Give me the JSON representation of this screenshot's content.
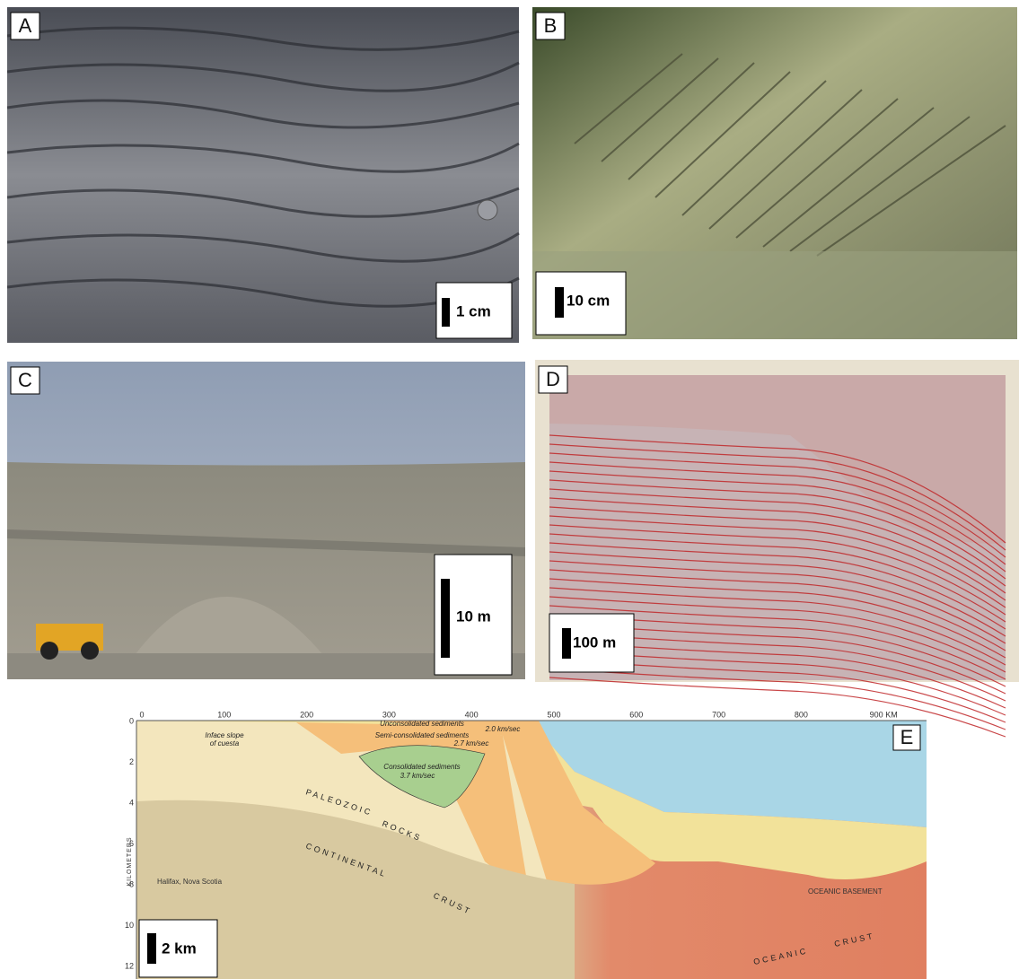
{
  "panels": [
    {
      "label": "A",
      "scale": "1 cm"
    },
    {
      "label": "B",
      "scale": "10 cm"
    },
    {
      "label": "C",
      "scale": "10 m"
    },
    {
      "label": "D",
      "scale": "100 m"
    },
    {
      "label": "E",
      "scale": "2 km",
      "x_axis": [
        "0",
        "100",
        "200",
        "300",
        "400",
        "500",
        "600",
        "700",
        "800",
        "900 KM"
      ],
      "y_axis": [
        "0",
        "2",
        "4",
        "6",
        "8",
        "10",
        "12"
      ],
      "y_axis_title": "KILOMETERS",
      "annotations": {
        "unconsolidated": "Unconsolidated sediments",
        "unconsolidated_speed": "2.0 km/sec",
        "semi": "Semi-consolidated sediments",
        "semi_speed": "2.7 km/sec",
        "consolidated": "Consolidated sediments",
        "consolidated_speed": "3.7 km/sec",
        "inface_1": "Inface slope",
        "inface_2": "of cuesta",
        "paleozoic": "PALEOZOIC",
        "rocks": "ROCKS",
        "continental": "CONTINENTAL",
        "crust_c": "CRUST",
        "halifax": "Halifax, Nova Scotia",
        "oceanic_basement": "OCEANIC BASEMENT",
        "oceanic": "OCEANIC",
        "crust_o": "CRUST"
      }
    }
  ]
}
